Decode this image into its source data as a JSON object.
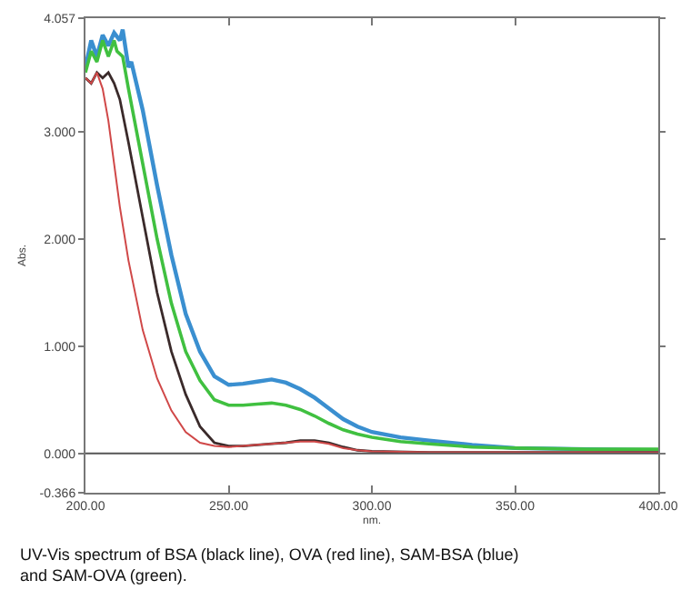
{
  "chart_data": {
    "type": "line",
    "xlabel": "nm.",
    "ylabel": "Abs.",
    "annotations": [
      "UV-Vis spectrum of BSA (black line), OVA (red line), SAM-BSA (blue)\nand SAM-OVA (green)."
    ],
    "xlim": [
      200,
      400
    ],
    "xticks": [
      {
        "value": 200,
        "label": "200.00"
      },
      {
        "value": 250,
        "label": "250.00"
      },
      {
        "value": 300,
        "label": "300.00"
      },
      {
        "value": 350,
        "label": "350.00"
      },
      {
        "value": 400,
        "label": "400.00"
      }
    ],
    "ylim": [
      -0.366,
      4.057
    ],
    "yticks": [
      {
        "value": -0.366,
        "label": "-0.366"
      },
      {
        "value": 0,
        "label": "0.000"
      },
      {
        "value": 1,
        "label": "1.000"
      },
      {
        "value": 2,
        "label": "2.000"
      },
      {
        "value": 3,
        "label": "3.000"
      },
      {
        "value": 4.057,
        "label": "4.057"
      }
    ],
    "ref_lines": [
      {
        "axis": "y",
        "value": 0,
        "color": "#555555"
      }
    ],
    "marker": "none",
    "line_style": "solid",
    "series": [
      {
        "color": "#3a8fd0",
        "x": [
          200,
          202,
          204,
          206,
          208,
          210,
          212,
          213,
          215,
          216,
          220,
          225,
          230,
          235,
          240,
          245,
          250,
          255,
          260,
          265,
          270,
          275,
          280,
          285,
          290,
          295,
          300,
          310,
          320,
          335,
          350,
          375,
          400
        ],
        "values": [
          3.6,
          3.85,
          3.7,
          3.9,
          3.8,
          3.92,
          3.85,
          3.95,
          3.6,
          3.65,
          3.2,
          2.5,
          1.85,
          1.3,
          0.95,
          0.72,
          0.64,
          0.65,
          0.67,
          0.69,
          0.66,
          0.6,
          0.52,
          0.42,
          0.32,
          0.25,
          0.2,
          0.15,
          0.12,
          0.08,
          0.05,
          0.04,
          0.03
        ]
      },
      {
        "color": "#40c040",
        "x": [
          200,
          202,
          204,
          206,
          208,
          210,
          211,
          213,
          215,
          220,
          225,
          230,
          235,
          240,
          245,
          250,
          255,
          260,
          265,
          270,
          275,
          280,
          285,
          290,
          295,
          300,
          310,
          320,
          335,
          350,
          375,
          400
        ],
        "values": [
          3.55,
          3.75,
          3.65,
          3.85,
          3.7,
          3.85,
          3.75,
          3.7,
          3.4,
          2.7,
          2.0,
          1.4,
          0.95,
          0.68,
          0.5,
          0.45,
          0.45,
          0.46,
          0.47,
          0.45,
          0.41,
          0.35,
          0.28,
          0.22,
          0.18,
          0.15,
          0.11,
          0.09,
          0.06,
          0.05,
          0.04,
          0.04
        ]
      },
      {
        "color": "#3a2a2a",
        "x": [
          200,
          202,
          204,
          206,
          208,
          210,
          212,
          215,
          220,
          225,
          230,
          235,
          240,
          245,
          250,
          255,
          260,
          265,
          270,
          275,
          280,
          285,
          290,
          295,
          300,
          320,
          350,
          400
        ],
        "values": [
          3.5,
          3.45,
          3.55,
          3.5,
          3.55,
          3.45,
          3.3,
          2.9,
          2.2,
          1.5,
          0.95,
          0.55,
          0.25,
          0.1,
          0.07,
          0.07,
          0.08,
          0.09,
          0.1,
          0.12,
          0.12,
          0.1,
          0.06,
          0.03,
          0.02,
          0.01,
          0.01,
          0.01
        ]
      },
      {
        "color": "#d04848",
        "x": [
          200,
          202,
          204,
          206,
          208,
          210,
          212,
          215,
          220,
          225,
          230,
          235,
          240,
          245,
          250,
          255,
          260,
          265,
          270,
          275,
          280,
          285,
          290,
          295,
          300,
          320,
          350,
          400
        ],
        "values": [
          3.5,
          3.45,
          3.55,
          3.4,
          3.1,
          2.7,
          2.3,
          1.8,
          1.15,
          0.7,
          0.4,
          0.2,
          0.1,
          0.07,
          0.06,
          0.07,
          0.08,
          0.09,
          0.1,
          0.11,
          0.11,
          0.09,
          0.05,
          0.03,
          0.02,
          0.01,
          0.01,
          0.01
        ]
      }
    ]
  }
}
